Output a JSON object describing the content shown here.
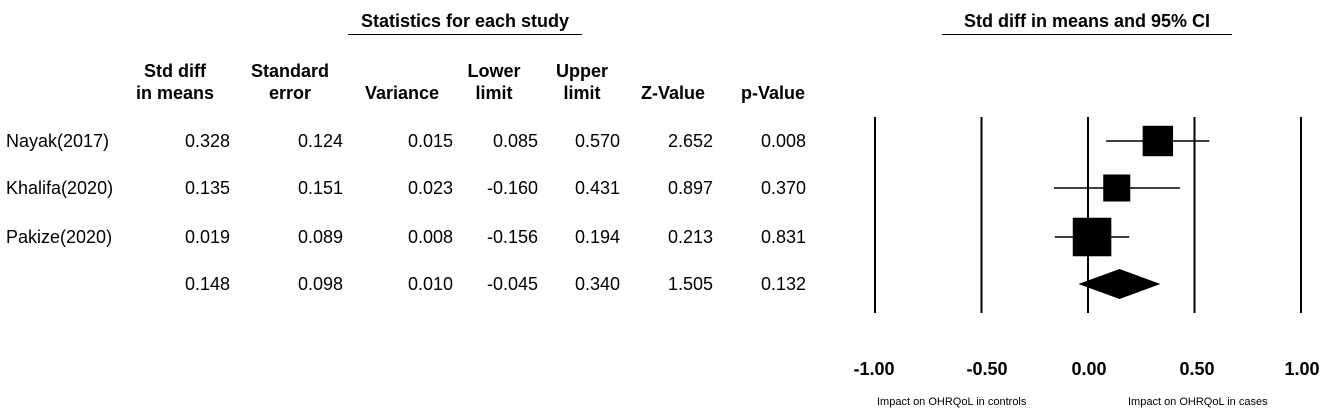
{
  "chart_data": {
    "type": "forest",
    "stats_header": "Statistics for each study",
    "plot_header": "Std diff in means and 95% CI",
    "columns": [
      {
        "key": "std_diff",
        "label_lines": [
          "Std diff",
          "in means"
        ]
      },
      {
        "key": "std_error",
        "label_lines": [
          "Standard",
          "error"
        ]
      },
      {
        "key": "variance",
        "label_lines": [
          "",
          "Variance"
        ]
      },
      {
        "key": "lower",
        "label_lines": [
          "Lower",
          "limit"
        ]
      },
      {
        "key": "upper",
        "label_lines": [
          "Upper",
          "limit"
        ]
      },
      {
        "key": "z",
        "label_lines": [
          "",
          "Z-Value"
        ]
      },
      {
        "key": "p",
        "label_lines": [
          "",
          "p-Value"
        ]
      }
    ],
    "studies": [
      {
        "name": "Nayak(2017)",
        "std_diff": "0.328",
        "std_error": "0.124",
        "variance": "0.015",
        "lower": "0.085",
        "upper": "0.570",
        "z": "2.652",
        "p": "0.008",
        "weight": 0.3
      },
      {
        "name": "Khalifa(2020)",
        "std_diff": "0.135",
        "std_error": "0.151",
        "variance": "0.023",
        "lower": "-0.160",
        "upper": "0.431",
        "z": "0.897",
        "p": "0.370",
        "weight": 0.23
      },
      {
        "name": "Pakize(2020)",
        "std_diff": "0.019",
        "std_error": "0.089",
        "variance": "0.008",
        "lower": "-0.156",
        "upper": "0.194",
        "z": "0.213",
        "p": "0.831",
        "weight": 0.47
      }
    ],
    "summary": {
      "name": "",
      "std_diff": "0.148",
      "std_error": "0.098",
      "variance": "0.010",
      "lower": "-0.045",
      "upper": "0.340",
      "z": "1.505",
      "p": "0.132"
    },
    "xlim": [
      -1.0,
      1.0
    ],
    "x_ticks": [
      "-1.00",
      "-0.50",
      "0.00",
      "0.50",
      "1.00"
    ],
    "favors_left": "Impact on OHRQoL in  controls",
    "favors_right": "Impact on OHRQoL in  cases"
  }
}
